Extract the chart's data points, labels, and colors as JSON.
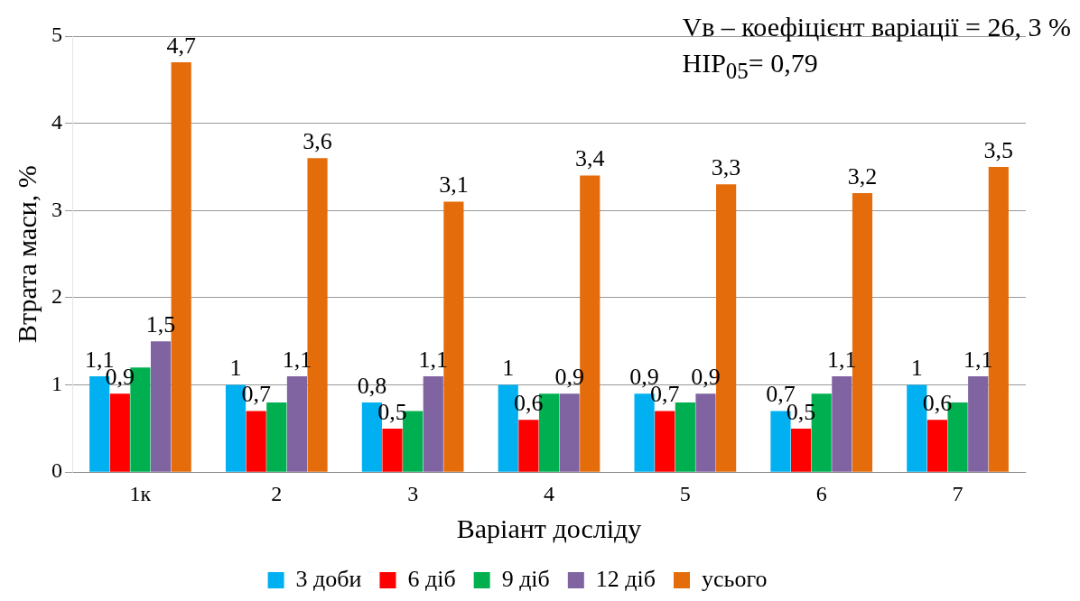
{
  "chart_data": {
    "type": "bar",
    "xlabel": "Варіант досліду",
    "ylabel": "Втрата маси, %",
    "categories": [
      "1к",
      "2",
      "3",
      "4",
      "5",
      "6",
      "7"
    ],
    "series": [
      {
        "name": "3 доби",
        "color": "#00b0f0",
        "values": [
          1.1,
          1,
          0.8,
          1,
          0.9,
          0.7,
          1
        ],
        "value_labels": [
          "1,1",
          "1",
          "0,8",
          "1",
          "0,9",
          "0,7",
          "1"
        ]
      },
      {
        "name": "6 діб",
        "color": "#ff0000",
        "values": [
          0.9,
          0.7,
          0.5,
          0.6,
          0.7,
          0.5,
          0.6
        ],
        "value_labels": [
          "0,9",
          "0,7",
          "0,5",
          "0,6",
          "0,7",
          "0,5",
          "0,6"
        ]
      },
      {
        "name": "9 діб",
        "color": "#00b050",
        "values": [
          1.2,
          0.8,
          0.7,
          0.9,
          0.8,
          0.9,
          0.8
        ]
      },
      {
        "name": "12 діб",
        "color": "#8064a2",
        "values": [
          1.5,
          1.1,
          1.1,
          0.9,
          0.9,
          1.1,
          1.1
        ],
        "value_labels": [
          "1,5",
          "1,1",
          "1,1",
          "0,9",
          "0,9",
          "1,1",
          "1,1"
        ]
      },
      {
        "name": "усього",
        "color": "#e46c0a",
        "values": [
          4.7,
          3.6,
          3.1,
          3.4,
          3.3,
          3.2,
          3.5
        ],
        "value_labels": [
          "4,7",
          "3,6",
          "3,1",
          "3,4",
          "3,3",
          "3,2",
          "3,5"
        ]
      }
    ],
    "ylim": [
      0,
      5
    ],
    "yticks": [
      0,
      1,
      2,
      3,
      4,
      5
    ],
    "grid": "y",
    "legend": "bottom",
    "annotations": [
      "Vв – коефіцієнт варіації = 26, 3 %",
      "НІР$_{05}$= 0,79"
    ]
  }
}
